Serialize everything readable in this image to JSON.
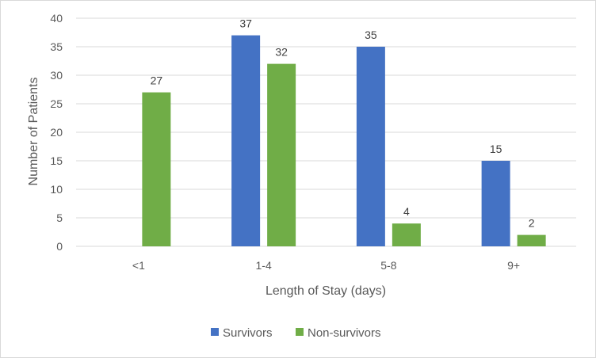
{
  "chart_data": {
    "type": "bar",
    "title": "",
    "xlabel": "Length of Stay (days)",
    "ylabel": "Number of Patients",
    "categories": [
      "<1",
      "1-4",
      "5-8",
      "9+"
    ],
    "series": [
      {
        "name": "Survivors",
        "values": [
          null,
          37,
          35,
          15
        ],
        "color": "#4472C4"
      },
      {
        "name": "Non-survivors",
        "values": [
          27,
          32,
          4,
          2
        ],
        "color": "#70AD47"
      }
    ],
    "ylim": [
      0,
      40
    ],
    "yticks": [
      0,
      5,
      10,
      15,
      20,
      25,
      30,
      35,
      40
    ],
    "grid": true,
    "legend": "bottom",
    "gridline_color": "#d9d9d9"
  }
}
